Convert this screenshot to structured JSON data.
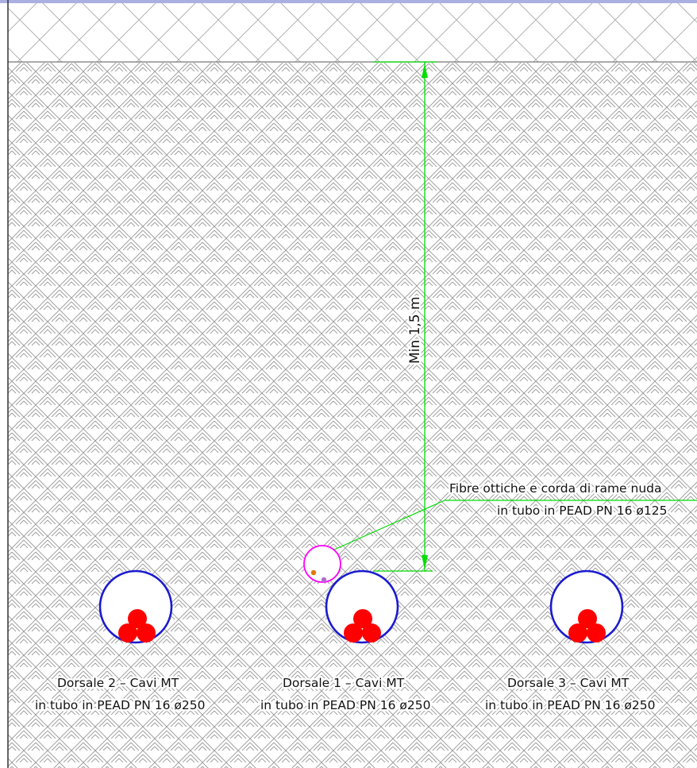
{
  "colors": {
    "frame_top": "#aab0e0",
    "hatch": "#9a9a9a",
    "grid": "#a8a8a8",
    "dimension": "#00dd00",
    "duct": "#1a1ad0",
    "cable": "#ff0000",
    "fiber_duct": "#ff00ff",
    "text": "#111111"
  },
  "dimension": {
    "label": "Min 1,5 m"
  },
  "fiber": {
    "line1": "Fibre ottiche e corda di rame nuda",
    "line2": "in tubo in PEAD PN 16 ø125"
  },
  "ducts": [
    {
      "id": "dorsale-2",
      "line1": "Dorsale 2 – Cavi MT",
      "line2": "in tubo in PEAD PN 16 ø250"
    },
    {
      "id": "dorsale-1",
      "line1": "Dorsale 1 – Cavi MT",
      "line2": "in tubo in PEAD PN 16 ø250"
    },
    {
      "id": "dorsale-3",
      "line1": "Dorsale 3 – Cavi MT",
      "line2": "in tubo in PEAD PN 16 ø250"
    }
  ]
}
